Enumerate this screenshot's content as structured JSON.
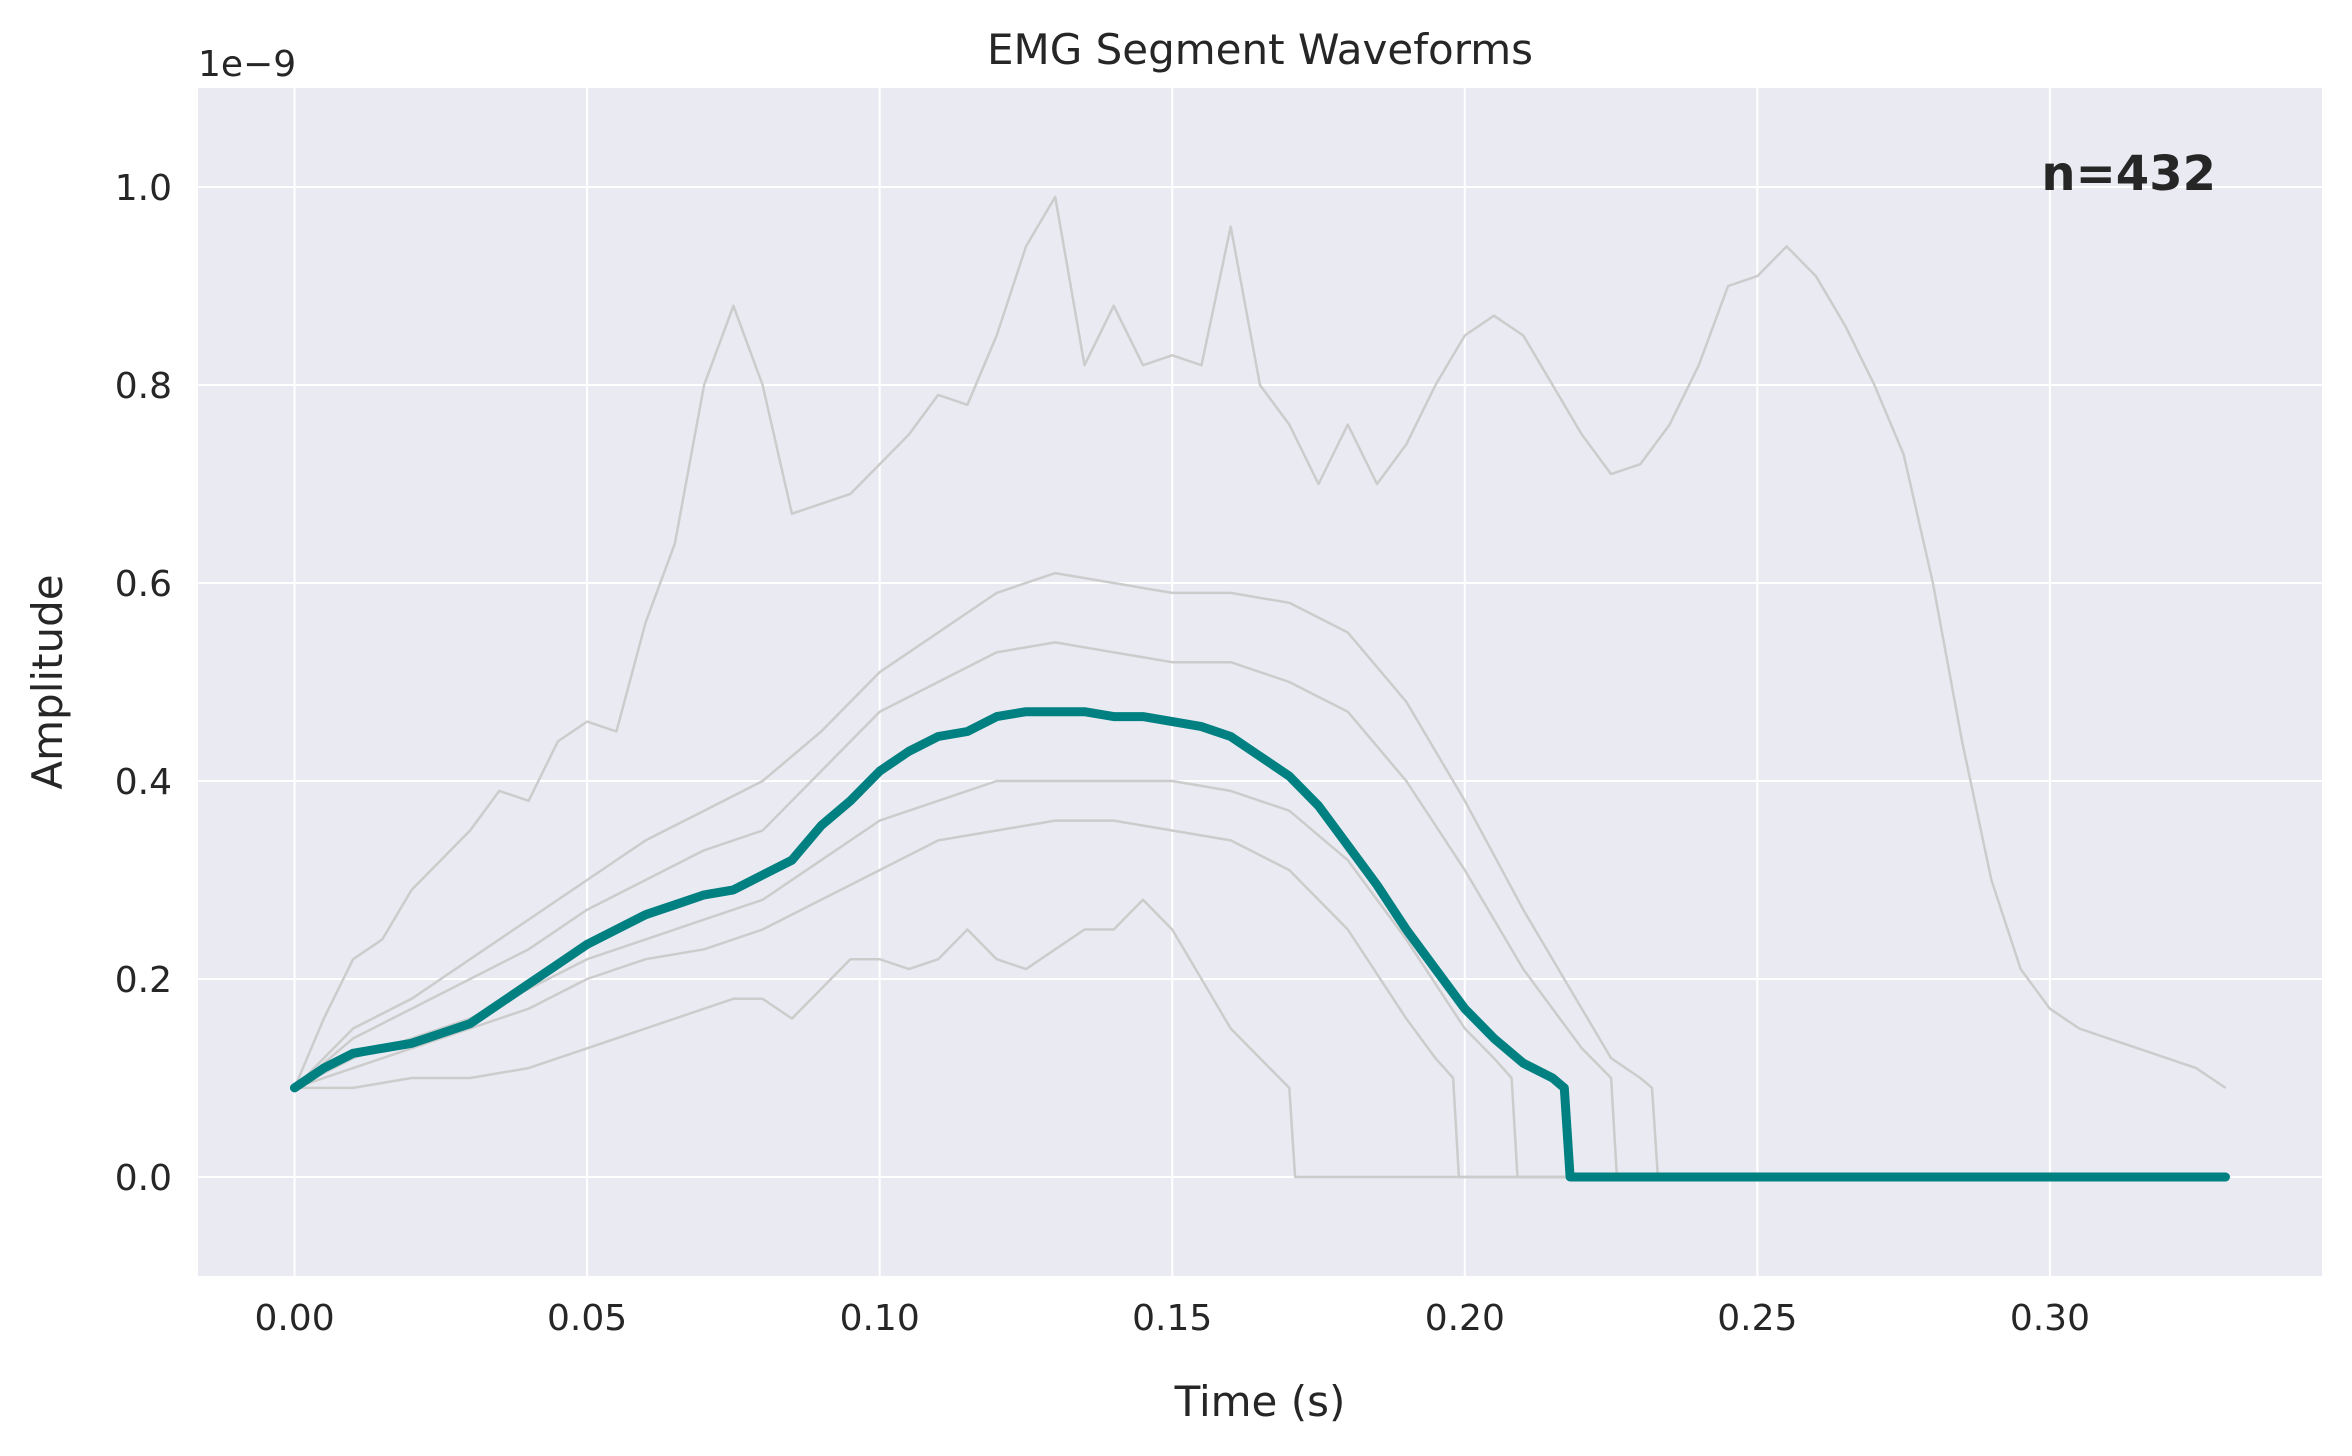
{
  "chart_data": {
    "type": "line",
    "title": "EMG Segment Waveforms",
    "xlabel": "Time (s)",
    "ylabel": "Amplitude",
    "y_offset_label": "1e−9",
    "annotation": "n=432",
    "xlim": [
      -0.0165,
      0.3465
    ],
    "ylim": [
      -0.1,
      1.1
    ],
    "xticks": [
      0.0,
      0.05,
      0.1,
      0.15,
      0.2,
      0.25,
      0.3
    ],
    "xtick_labels": [
      "0.00",
      "0.05",
      "0.10",
      "0.15",
      "0.20",
      "0.25",
      "0.30"
    ],
    "yticks": [
      0.0,
      0.2,
      0.4,
      0.6,
      0.8,
      1.0
    ],
    "ytick_labels": [
      "0.0",
      "0.2",
      "0.4",
      "0.6",
      "0.8",
      "1.0"
    ],
    "grid": true,
    "colors": {
      "background": "#eaeaf2",
      "grid": "#ffffff",
      "envelope": "#cccccc",
      "median": "#008080",
      "text": "#262626"
    },
    "series": [
      {
        "role": "envelope",
        "x": [
          0.0,
          0.005,
          0.01,
          0.015,
          0.02,
          0.025,
          0.03,
          0.035,
          0.04,
          0.045,
          0.05,
          0.055,
          0.06,
          0.065,
          0.07,
          0.075,
          0.08,
          0.085,
          0.09,
          0.095,
          0.1,
          0.105,
          0.11,
          0.115,
          0.12,
          0.125,
          0.13,
          0.135,
          0.14,
          0.145,
          0.15,
          0.155,
          0.16,
          0.165,
          0.17,
          0.175,
          0.18,
          0.185,
          0.19,
          0.195,
          0.2,
          0.205,
          0.21,
          0.215,
          0.22,
          0.225,
          0.23,
          0.235,
          0.24,
          0.245,
          0.25,
          0.255,
          0.26,
          0.265,
          0.27,
          0.275,
          0.28,
          0.285,
          0.29,
          0.295,
          0.3,
          0.305,
          0.31,
          0.315,
          0.32,
          0.325,
          0.33
        ],
        "y": [
          0.09,
          0.16,
          0.22,
          0.24,
          0.29,
          0.32,
          0.35,
          0.39,
          0.38,
          0.44,
          0.46,
          0.45,
          0.56,
          0.64,
          0.8,
          0.88,
          0.8,
          0.67,
          0.68,
          0.69,
          0.72,
          0.75,
          0.79,
          0.78,
          0.85,
          0.94,
          0.99,
          0.82,
          0.88,
          0.82,
          0.83,
          0.82,
          0.96,
          0.8,
          0.76,
          0.7,
          0.76,
          0.7,
          0.74,
          0.8,
          0.85,
          0.87,
          0.85,
          0.8,
          0.75,
          0.71,
          0.72,
          0.76,
          0.82,
          0.9,
          0.91,
          0.94,
          0.91,
          0.86,
          0.8,
          0.73,
          0.6,
          0.44,
          0.3,
          0.21,
          0.17,
          0.15,
          0.14,
          0.13,
          0.12,
          0.11,
          0.09
        ]
      },
      {
        "role": "envelope",
        "x": [
          0.0,
          0.01,
          0.02,
          0.03,
          0.04,
          0.05,
          0.06,
          0.07,
          0.08,
          0.09,
          0.1,
          0.11,
          0.12,
          0.13,
          0.14,
          0.15,
          0.16,
          0.17,
          0.18,
          0.19,
          0.2,
          0.21,
          0.22,
          0.225,
          0.23,
          0.232,
          0.233,
          0.33
        ],
        "y": [
          0.09,
          0.15,
          0.18,
          0.22,
          0.26,
          0.3,
          0.34,
          0.37,
          0.4,
          0.45,
          0.51,
          0.55,
          0.59,
          0.61,
          0.6,
          0.59,
          0.59,
          0.58,
          0.55,
          0.48,
          0.38,
          0.27,
          0.17,
          0.12,
          0.1,
          0.09,
          0.0,
          0.0
        ]
      },
      {
        "role": "envelope",
        "x": [
          0.0,
          0.01,
          0.02,
          0.03,
          0.04,
          0.05,
          0.06,
          0.07,
          0.08,
          0.09,
          0.1,
          0.11,
          0.12,
          0.13,
          0.14,
          0.15,
          0.16,
          0.17,
          0.18,
          0.19,
          0.2,
          0.21,
          0.22,
          0.225,
          0.226,
          0.33
        ],
        "y": [
          0.09,
          0.14,
          0.17,
          0.2,
          0.23,
          0.27,
          0.3,
          0.33,
          0.35,
          0.41,
          0.47,
          0.5,
          0.53,
          0.54,
          0.53,
          0.52,
          0.52,
          0.5,
          0.47,
          0.4,
          0.31,
          0.21,
          0.13,
          0.1,
          0.0,
          0.0
        ]
      },
      {
        "role": "envelope",
        "x": [
          0.0,
          0.01,
          0.02,
          0.03,
          0.04,
          0.05,
          0.06,
          0.07,
          0.08,
          0.09,
          0.1,
          0.11,
          0.12,
          0.13,
          0.14,
          0.15,
          0.16,
          0.17,
          0.18,
          0.19,
          0.2,
          0.205,
          0.208,
          0.209,
          0.33
        ],
        "y": [
          0.09,
          0.12,
          0.14,
          0.16,
          0.19,
          0.22,
          0.24,
          0.26,
          0.28,
          0.32,
          0.36,
          0.38,
          0.4,
          0.4,
          0.4,
          0.4,
          0.39,
          0.37,
          0.32,
          0.24,
          0.15,
          0.12,
          0.1,
          0.0,
          0.0
        ]
      },
      {
        "role": "envelope",
        "x": [
          0.0,
          0.01,
          0.02,
          0.03,
          0.04,
          0.05,
          0.06,
          0.07,
          0.08,
          0.09,
          0.1,
          0.11,
          0.12,
          0.13,
          0.14,
          0.15,
          0.16,
          0.17,
          0.18,
          0.19,
          0.195,
          0.198,
          0.199,
          0.33
        ],
        "y": [
          0.09,
          0.11,
          0.13,
          0.15,
          0.17,
          0.2,
          0.22,
          0.23,
          0.25,
          0.28,
          0.31,
          0.34,
          0.35,
          0.36,
          0.36,
          0.35,
          0.34,
          0.31,
          0.25,
          0.16,
          0.12,
          0.1,
          0.0,
          0.0
        ]
      },
      {
        "role": "envelope",
        "x": [
          0.0,
          0.01,
          0.02,
          0.03,
          0.04,
          0.05,
          0.06,
          0.07,
          0.075,
          0.08,
          0.085,
          0.09,
          0.095,
          0.1,
          0.105,
          0.11,
          0.115,
          0.12,
          0.125,
          0.13,
          0.135,
          0.14,
          0.145,
          0.15,
          0.155,
          0.16,
          0.165,
          0.17,
          0.171,
          0.33
        ],
        "y": [
          0.09,
          0.09,
          0.1,
          0.1,
          0.11,
          0.13,
          0.15,
          0.17,
          0.18,
          0.18,
          0.16,
          0.19,
          0.22,
          0.22,
          0.21,
          0.22,
          0.25,
          0.22,
          0.21,
          0.23,
          0.25,
          0.25,
          0.28,
          0.25,
          0.2,
          0.15,
          0.12,
          0.09,
          0.0,
          0.0
        ]
      },
      {
        "role": "median",
        "x": [
          0.0,
          0.005,
          0.01,
          0.015,
          0.02,
          0.025,
          0.03,
          0.035,
          0.04,
          0.045,
          0.05,
          0.055,
          0.06,
          0.065,
          0.07,
          0.075,
          0.08,
          0.085,
          0.09,
          0.095,
          0.1,
          0.105,
          0.11,
          0.115,
          0.12,
          0.125,
          0.13,
          0.135,
          0.14,
          0.145,
          0.15,
          0.155,
          0.16,
          0.165,
          0.17,
          0.175,
          0.18,
          0.185,
          0.19,
          0.195,
          0.2,
          0.205,
          0.21,
          0.215,
          0.217,
          0.218,
          0.33
        ],
        "y": [
          0.09,
          0.11,
          0.125,
          0.13,
          0.135,
          0.145,
          0.155,
          0.175,
          0.195,
          0.215,
          0.235,
          0.25,
          0.265,
          0.275,
          0.285,
          0.29,
          0.305,
          0.32,
          0.355,
          0.38,
          0.41,
          0.43,
          0.445,
          0.45,
          0.465,
          0.47,
          0.47,
          0.47,
          0.465,
          0.465,
          0.46,
          0.455,
          0.445,
          0.425,
          0.405,
          0.375,
          0.335,
          0.295,
          0.25,
          0.21,
          0.17,
          0.14,
          0.115,
          0.1,
          0.09,
          0.0,
          0.0
        ]
      }
    ]
  }
}
